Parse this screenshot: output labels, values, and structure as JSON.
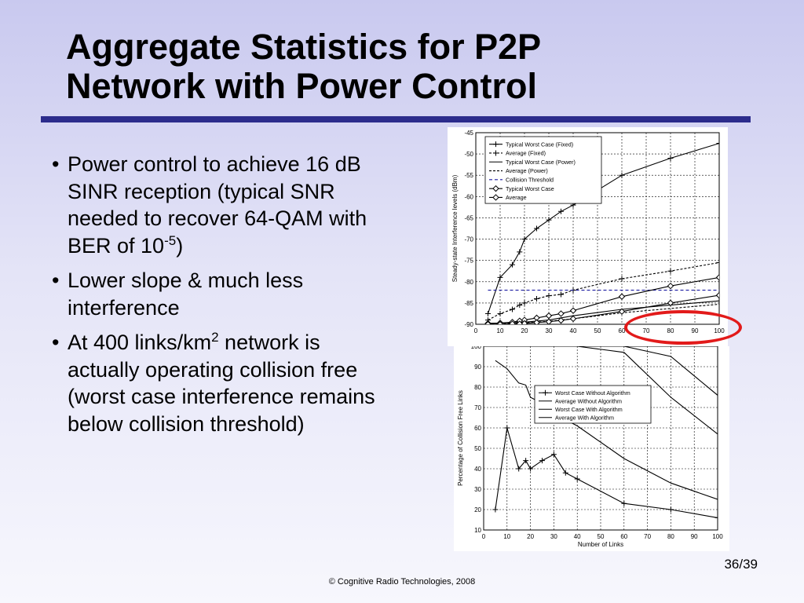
{
  "title": {
    "line1": "Aggregate Statistics for P2P",
    "line2": "Network with Power Control"
  },
  "bullets": [
    {
      "marker": "•",
      "text": "Power control to achieve 16 dB SINR reception (typical SNR needed to recover 64-QAM with BER of 10",
      "sup": "-5",
      "tail": ")"
    },
    {
      "marker": "•",
      "text": "Lower slope & much less interference",
      "sup": "",
      "tail": ""
    },
    {
      "marker": "•",
      "text": "At 400 links/km",
      "sup": "2",
      "tail": " network is actually operating collision free (worst case interference remains below collision threshold)"
    }
  ],
  "slide_number": "36/39",
  "footer": "© Cognitive Radio Technologies, 2008",
  "colors": {
    "title_rule": "#2c2c8c",
    "highlight": "#e21a1a",
    "threshold": "#1a1aa0"
  },
  "chart_data": [
    {
      "type": "line",
      "title": "",
      "xlabel": "",
      "ylabel": "Steady-state Interference levels (dBm)",
      "xlim": [
        0,
        100
      ],
      "ylim": [
        -90,
        -45
      ],
      "xticks": [
        0,
        10,
        20,
        30,
        40,
        50,
        60,
        70,
        80,
        90,
        100
      ],
      "yticks": [
        -45,
        -50,
        -55,
        -60,
        -65,
        -70,
        -75,
        -80,
        -85,
        -90
      ],
      "grid": true,
      "legend_position": "top-left",
      "series": [
        {
          "name": "Typical Worst Case (Fixed)",
          "style": "solid",
          "marker": "plus",
          "x": [
            5,
            10,
            15,
            18,
            20,
            25,
            30,
            35,
            40,
            60,
            80,
            100
          ],
          "y": [
            -87.5,
            -79,
            -76,
            -73,
            -70,
            -67.5,
            -65.5,
            -63.5,
            -62,
            -55,
            -51,
            -47.5
          ]
        },
        {
          "name": "Average (Fixed)",
          "style": "dashed",
          "marker": "plus",
          "x": [
            5,
            10,
            15,
            18,
            20,
            25,
            30,
            35,
            40,
            60,
            80,
            100
          ],
          "y": [
            -89,
            -87.5,
            -86.5,
            -85.5,
            -85,
            -84,
            -83.3,
            -83,
            -82,
            -79.3,
            -77.5,
            -75.5
          ]
        },
        {
          "name": "Typical Worst Case (Power)",
          "style": "solid",
          "marker": "none",
          "x": [
            5,
            10,
            20,
            30,
            40,
            60,
            80,
            100
          ],
          "y": [
            -89.8,
            -89.7,
            -89.5,
            -89,
            -88,
            -86.5,
            -85.5,
            -84.5
          ]
        },
        {
          "name": "Average (Power)",
          "style": "dashed",
          "marker": "none",
          "x": [
            5,
            10,
            20,
            30,
            40,
            60,
            80,
            100
          ],
          "y": [
            -89.9,
            -89.9,
            -89.7,
            -89.3,
            -88.7,
            -87.3,
            -86.3,
            -85.3
          ]
        },
        {
          "name": "Collision Threshold",
          "style": "dashed-blue",
          "marker": "none",
          "x": [
            5,
            100
          ],
          "y": [
            -82,
            -82
          ]
        },
        {
          "name": "Typical Worst Case",
          "style": "solid",
          "marker": "diamond",
          "x": [
            5,
            10,
            15,
            18,
            20,
            25,
            30,
            35,
            40,
            60,
            80,
            100
          ],
          "y": [
            -89.8,
            -89.7,
            -89.5,
            -89.2,
            -89,
            -88.5,
            -88,
            -87.5,
            -86.8,
            -83.5,
            -81,
            -79
          ]
        },
        {
          "name": "Average",
          "style": "solid",
          "marker": "diamond",
          "x": [
            5,
            10,
            15,
            18,
            20,
            25,
            30,
            35,
            40,
            60,
            80,
            100
          ],
          "y": [
            -90,
            -90,
            -89.9,
            -89.9,
            -89.8,
            -89.6,
            -89.4,
            -89.1,
            -88.7,
            -87,
            -85,
            -83.2
          ]
        }
      ]
    },
    {
      "type": "line",
      "title": "",
      "xlabel": "Number of Links",
      "ylabel": "Percentage of Collision Free Links",
      "xlim": [
        0,
        100
      ],
      "ylim": [
        10,
        100
      ],
      "xticks": [
        0,
        10,
        20,
        30,
        40,
        50,
        60,
        70,
        80,
        90,
        100
      ],
      "yticks": [
        100,
        90,
        80,
        70,
        60,
        50,
        40,
        30,
        20,
        10
      ],
      "grid": true,
      "legend_position": "top-right",
      "series": [
        {
          "name": "Worst Case Without Algorithm",
          "style": "solid",
          "marker": "plus",
          "x": [
            5,
            10,
            15,
            18,
            20,
            25,
            30,
            35,
            40,
            60,
            80,
            100
          ],
          "y": [
            20,
            60,
            40,
            44,
            40,
            44,
            47,
            38,
            35,
            23,
            20,
            16
          ]
        },
        {
          "name": "Average Without Algorithm",
          "style": "solid",
          "marker": "none",
          "x": [
            5,
            10,
            15,
            18,
            20,
            25,
            30,
            35,
            40,
            60,
            80,
            100
          ],
          "y": [
            93,
            89,
            82,
            81,
            75,
            72,
            67,
            64,
            61,
            45,
            33,
            25
          ]
        },
        {
          "name": "Worst Case With Algorithm",
          "style": "solid",
          "marker": "none",
          "x": [
            40,
            60,
            80,
            100
          ],
          "y": [
            100,
            97,
            75,
            57
          ]
        },
        {
          "name": "Average With Algorithm",
          "style": "solid",
          "marker": "none",
          "x": [
            60,
            80,
            100
          ],
          "y": [
            100,
            95,
            76
          ]
        }
      ]
    }
  ]
}
